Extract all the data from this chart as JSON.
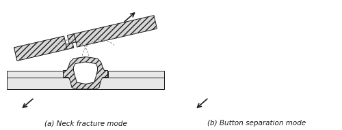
{
  "title_a": "(a) Neck fracture mode",
  "title_b": "(b) Button separation mode",
  "bg_color": "#ffffff",
  "line_color": "#1a1a1a",
  "plate_fill": "#e8e8e8",
  "hatch_fill": "#d8d8d8",
  "font_size": 7.5
}
